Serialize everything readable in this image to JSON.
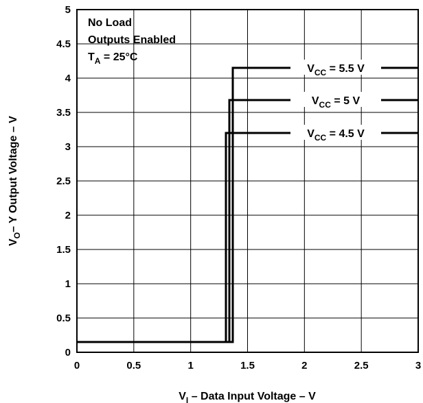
{
  "chart_data": {
    "type": "line",
    "xlabel": {
      "main": "V",
      "sub": "I",
      "rest": " – Data Input Voltage – V"
    },
    "ylabel": {
      "main": "V",
      "sub": "O",
      "rest": "– Y Output Voltage – V"
    },
    "xlim": [
      0,
      3
    ],
    "ylim": [
      0,
      5
    ],
    "x_ticks": [
      "0",
      "0.5",
      "1",
      "1.5",
      "2",
      "2.5",
      "3"
    ],
    "y_ticks": [
      "0",
      "0.5",
      "1",
      "1.5",
      "2",
      "2.5",
      "3",
      "3.5",
      "4",
      "4.5",
      "5"
    ],
    "grid": true,
    "conditions": [
      {
        "text": "No Load"
      },
      {
        "text": "Outputs Enabled"
      },
      {
        "main": "T",
        "sub": "A",
        "rest": " = 25°C"
      }
    ],
    "series": [
      {
        "name": {
          "main": "V",
          "sub": "CC",
          "rest": " = 5.5 V"
        },
        "x": [
          0,
          1.37,
          1.37,
          3
        ],
        "y": [
          0.15,
          0.15,
          4.15,
          4.15
        ]
      },
      {
        "name": {
          "main": "V",
          "sub": "CC",
          "rest": " = 5 V"
        },
        "x": [
          0,
          1.34,
          1.34,
          3
        ],
        "y": [
          0.15,
          0.15,
          3.68,
          3.68
        ]
      },
      {
        "name": {
          "main": "V",
          "sub": "CC",
          "rest": " = 4.5 V"
        },
        "x": [
          0,
          1.31,
          1.31,
          3
        ],
        "y": [
          0.15,
          0.15,
          3.2,
          3.2
        ]
      }
    ]
  }
}
